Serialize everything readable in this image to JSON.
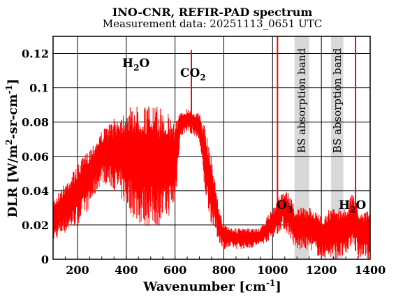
{
  "chart_data": {
    "type": "line",
    "title": "INO-CNR, REFIR-PAD spectrum",
    "subtitle": "Measurement data: 20251113_0651 UTC",
    "xlabel": "Wavenumber [cm-1]",
    "ylabel": "DLR [W/m2-sr-cm-1]",
    "xlim": [
      100,
      1400
    ],
    "ylim": [
      0,
      0.13
    ],
    "xticks": [
      200,
      400,
      600,
      800,
      1000,
      1200,
      1400
    ],
    "yticks": [
      0,
      0.02,
      0.04,
      0.06,
      0.08,
      0.1,
      0.12
    ],
    "ytick_labels": [
      "0",
      "0.02",
      "0.04",
      "0.06",
      "0.08",
      "0.1",
      "0.12"
    ],
    "grid": true,
    "series_color": "#ff0000",
    "band_color": "#d8d8d8",
    "shaded_bands": [
      {
        "x": [
          1090,
          1150
        ],
        "label": "BS absorption band"
      },
      {
        "x": [
          1240,
          1290
        ],
        "label": "BS absorption band"
      }
    ],
    "annotations": [
      {
        "text": "H2O",
        "x": 450,
        "y": 0.113
      },
      {
        "text": "CO2",
        "x": 700,
        "y": 0.108
      },
      {
        "text": "O3",
        "x": 1050,
        "y": 0.032
      },
      {
        "text": "H2O",
        "x": 1330,
        "y": 0.032
      }
    ],
    "envelope": {
      "x": [
        100,
        150,
        200,
        250,
        300,
        350,
        400,
        450,
        500,
        550,
        600,
        620,
        650,
        680,
        700,
        720,
        750,
        780,
        800,
        850,
        900,
        950,
        1000,
        1010,
        1020,
        1040,
        1060,
        1080,
        1090,
        1150,
        1160,
        1200,
        1240,
        1290,
        1300,
        1330,
        1350,
        1380,
        1400
      ],
      "upper": [
        0.035,
        0.045,
        0.055,
        0.065,
        0.075,
        0.082,
        0.088,
        0.09,
        0.09,
        0.088,
        0.082,
        0.085,
        0.088,
        0.086,
        0.085,
        0.078,
        0.06,
        0.03,
        0.02,
        0.018,
        0.018,
        0.018,
        0.03,
        0.03,
        0.035,
        0.04,
        0.04,
        0.035,
        0.03,
        0.03,
        0.03,
        0.025,
        0.03,
        0.03,
        0.03,
        0.04,
        0.03,
        0.028,
        0.028
      ],
      "lower": [
        0.01,
        0.015,
        0.02,
        0.03,
        0.045,
        0.04,
        0.03,
        0.02,
        0.018,
        0.02,
        0.03,
        0.07,
        0.075,
        0.072,
        0.068,
        0.04,
        0.02,
        0.01,
        0.006,
        0.006,
        0.006,
        0.008,
        0.012,
        0.015,
        0.015,
        0.018,
        0.015,
        0.01,
        0.005,
        0.005,
        0.005,
        0.0,
        0.0,
        0.0,
        0.0,
        0.01,
        0.0,
        0.0,
        0.0
      ]
    },
    "spikes": [
      {
        "x": 667,
        "y": 0.122
      },
      {
        "x": 1020,
        "y": 0.13
      },
      {
        "x": 1340,
        "y": 0.13
      }
    ]
  }
}
